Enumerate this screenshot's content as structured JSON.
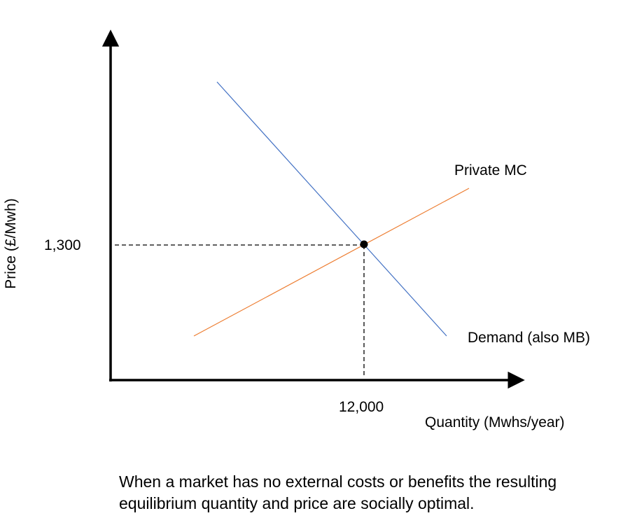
{
  "chart_data": {
    "type": "line",
    "xlabel": "Quantity (Mwhs/year)",
    "ylabel": "Price (£/Mwh)",
    "equilibrium": {
      "x_label": "12,000",
      "y_label": "1,300"
    },
    "series": [
      {
        "name": "Demand (also MB)",
        "slope": "downward",
        "color": "#4472c4"
      },
      {
        "name": "Private MC",
        "slope": "upward",
        "color": "#ed7d31"
      }
    ],
    "grid": false,
    "legend": "inline labels"
  },
  "caption": {
    "line1": "When a market has no external costs or benefits the resulting",
    "line2": "equilibrium quantity and price are socially optimal."
  }
}
